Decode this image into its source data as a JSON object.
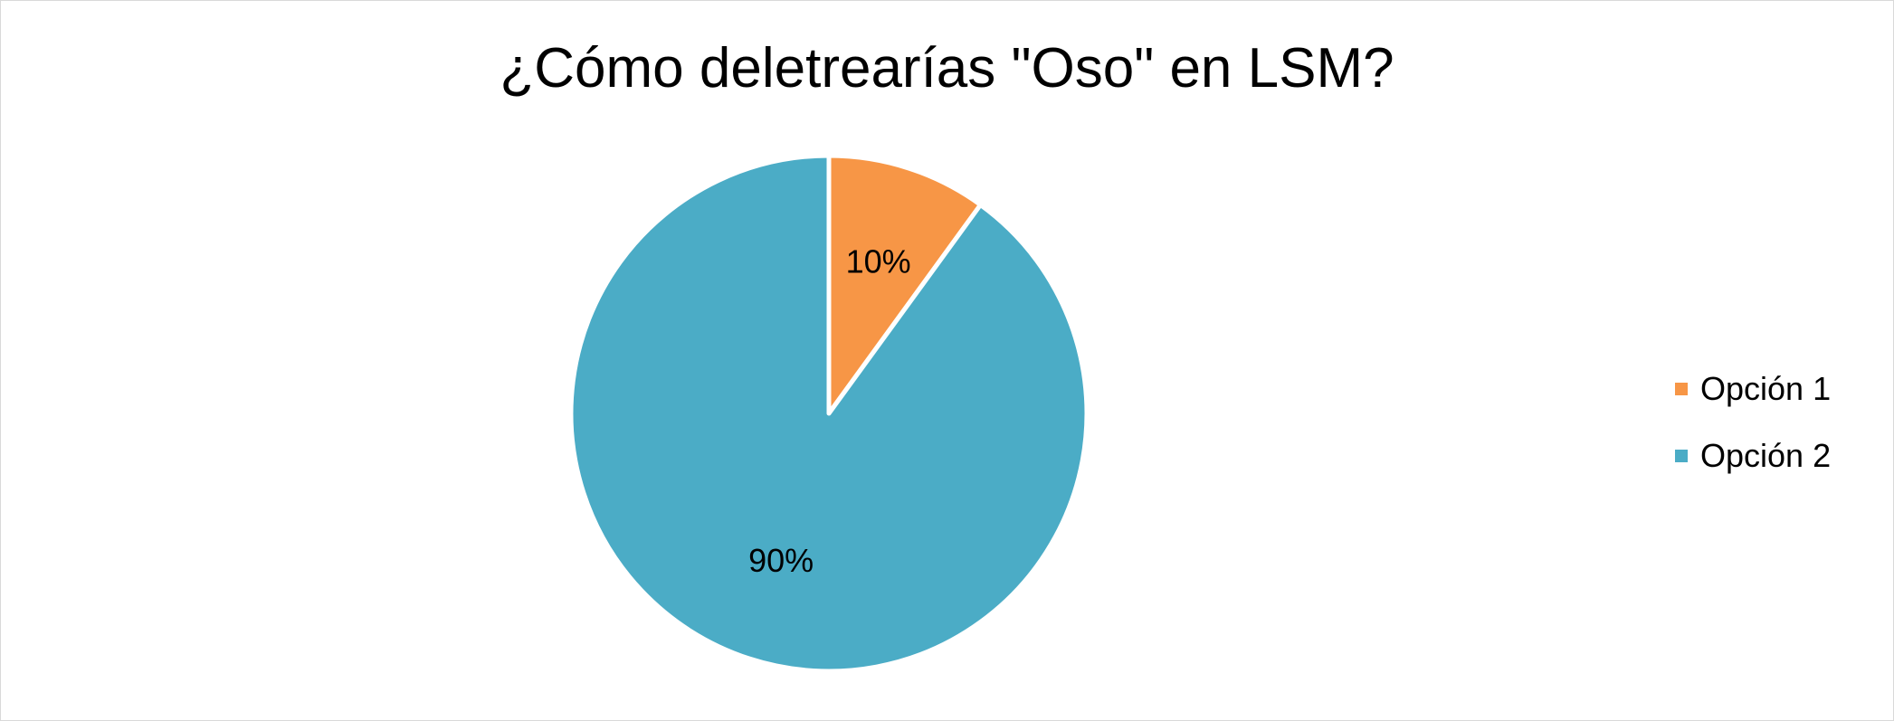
{
  "chart_data": {
    "type": "pie",
    "title": "¿Cómo deletrearías \"Oso\" en LSM?",
    "categories": [
      "Opción 1",
      "Opción 2"
    ],
    "values": [
      10,
      90
    ],
    "data_labels": [
      "10%",
      "90%"
    ],
    "colors": [
      "#F79646",
      "#4BACC6"
    ],
    "legend_position": "right"
  }
}
